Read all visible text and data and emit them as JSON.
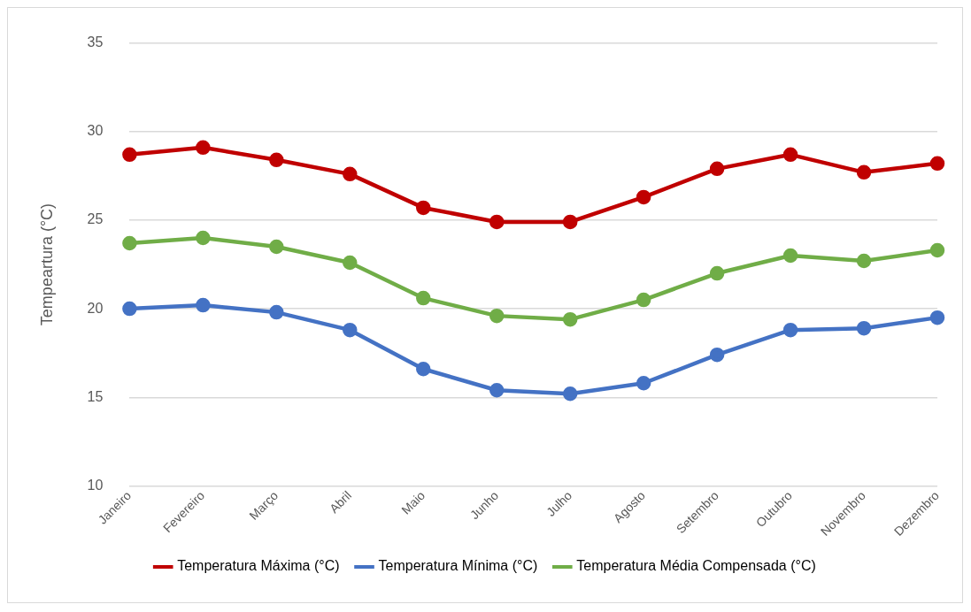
{
  "chart_data": {
    "type": "line",
    "ylabel": "Tempeartura (°C)",
    "categories": [
      "Janeiro",
      "Fevereiro",
      "Março",
      "Abril",
      "Maio",
      "Junho",
      "Julho",
      "Agosto",
      "Setembro",
      "Outubro",
      "Novembro",
      "Dezembro"
    ],
    "series": [
      {
        "name": "Temperatura Máxima (°C)",
        "color": "#c00000",
        "values": [
          28.7,
          29.1,
          28.4,
          27.6,
          25.7,
          24.9,
          24.9,
          26.3,
          27.9,
          28.7,
          27.7,
          28.2
        ]
      },
      {
        "name": "Temperatura Mínima (°C)",
        "color": "#4472c4",
        "values": [
          20.0,
          20.2,
          19.8,
          18.8,
          16.6,
          15.4,
          15.2,
          15.8,
          17.4,
          18.8,
          18.9,
          19.5
        ]
      },
      {
        "name": "Temperatura Média Compensada (°C)",
        "color": "#70ad47",
        "values": [
          23.7,
          24.0,
          23.5,
          22.6,
          20.6,
          19.6,
          19.4,
          20.5,
          22.0,
          23.0,
          22.7,
          23.3
        ]
      }
    ],
    "ylim": [
      10,
      35
    ],
    "yticks": [
      10,
      15,
      20,
      25,
      30,
      35
    ],
    "grid": "y",
    "legend": "bottom",
    "marker": "circle",
    "line_style": "solid"
  }
}
